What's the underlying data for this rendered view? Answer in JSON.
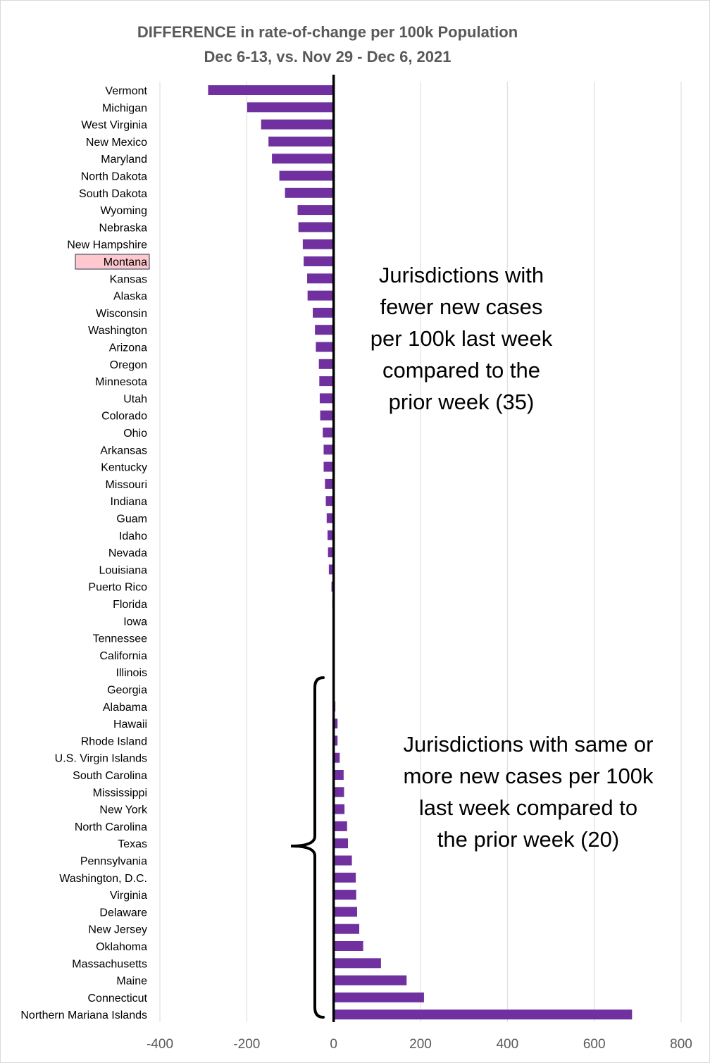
{
  "chart_data": {
    "type": "bar",
    "orientation": "horizontal",
    "title": "DIFFERENCE in rate-of-change per 100k Population",
    "subtitle": "Dec 6-13, vs. Nov 29 - Dec 6, 2021",
    "xlabel": "",
    "ylabel": "",
    "xlim": [
      -400,
      800
    ],
    "xticks": [
      -400,
      -200,
      0,
      200,
      400,
      600,
      800
    ],
    "grid": true,
    "bar_color": "#7030A0",
    "highlight_color": "#FFC7CE",
    "highlight_category": "Montana",
    "categories": [
      "Vermont",
      "Michigan",
      "West Virginia",
      "New Mexico",
      "Maryland",
      "North Dakota",
      "South Dakota",
      "Wyoming",
      "Nebraska",
      "New Hampshire",
      "Montana",
      "Kansas",
      "Alaska",
      "Wisconsin",
      "Washington",
      "Arizona",
      "Oregon",
      "Minnesota",
      "Utah",
      "Colorado",
      "Ohio",
      "Arkansas",
      "Kentucky",
      "Missouri",
      "Indiana",
      "Guam",
      "Idaho",
      "Nevada",
      "Louisiana",
      "Puerto Rico",
      "Florida",
      "Iowa",
      "Tennessee",
      "California",
      "Illinois",
      "Georgia",
      "Alabama",
      "Hawaii",
      "Rhode Island",
      "U.S. Virgin Islands",
      "South Carolina",
      "Mississippi",
      "New York",
      "North Carolina",
      "Texas",
      "Pennsylvania",
      "Washington, D.C.",
      "Virginia",
      "Delaware",
      "New Jersey",
      "Oklahoma",
      "Massachusetts",
      "Maine",
      "Connecticut",
      "Northern Mariana Islands"
    ],
    "values": [
      -289,
      -199,
      -167,
      -150,
      -142,
      -125,
      -112,
      -83,
      -81,
      -71,
      -69,
      -61,
      -60,
      -48,
      -43,
      -41,
      -34,
      -33,
      -32,
      -31,
      -25,
      -23,
      -23,
      -20,
      -18,
      -16,
      -14,
      -13,
      -11,
      -5,
      -3,
      -2,
      -2,
      -2,
      -1,
      0,
      4,
      9,
      9,
      14,
      23,
      24,
      25,
      31,
      33,
      42,
      51,
      52,
      54,
      59,
      68,
      109,
      168,
      208,
      687
    ],
    "annotations": [
      {
        "text": "Jurisdictions with\nfewer new cases\nper 100k last week\ncompared to the\nprior week (35)"
      },
      {
        "text": "Jurisdictions with same or\nmore new cases per 100k\nlast week compared to\nthe prior week (20)"
      }
    ]
  }
}
